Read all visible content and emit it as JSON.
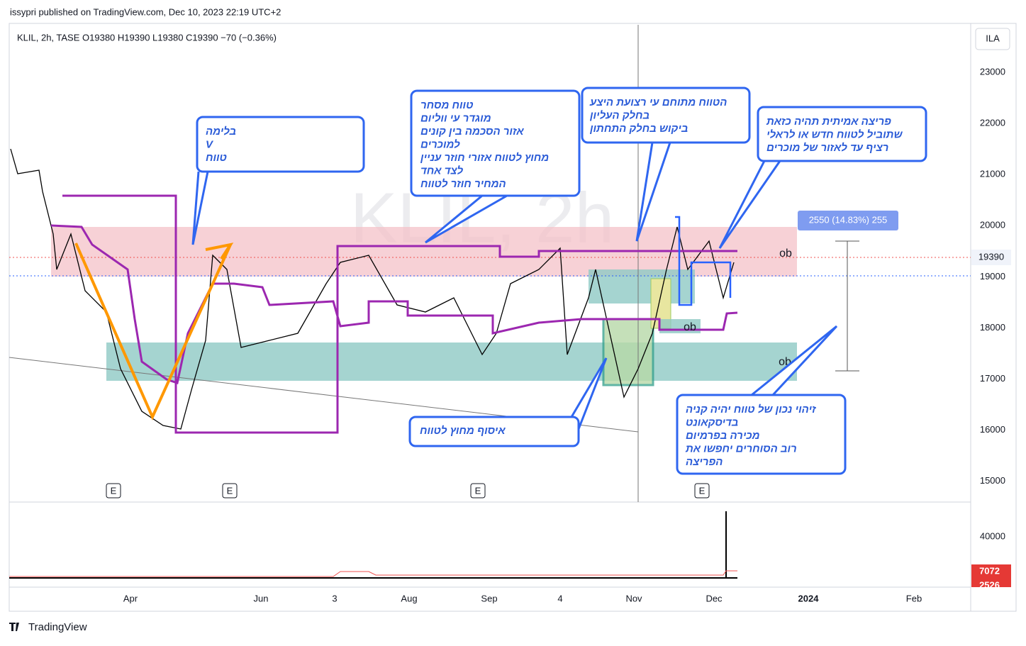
{
  "header": {
    "published": "issypri published on TradingView.com, Dec 10, 2023 22:19 UTC+2"
  },
  "chart": {
    "legend": "KLIL, 2h, TASE  O19380  H19390  L19380  C19390  −70 (−0.36%)",
    "currency": "ILA",
    "watermark": "KLIL, 2h",
    "price_axis": [
      "23000",
      "22000",
      "21000",
      "20000",
      "19000",
      "18000",
      "17000",
      "16000",
      "15000"
    ],
    "last_price": "19390",
    "measure_label": "2550 (14.83%) 255",
    "zone_labels": [
      "ob",
      "ob",
      "ob"
    ],
    "earnings_markers": [
      "E",
      "E",
      "E",
      "E"
    ],
    "volume_axis": [
      "40000"
    ],
    "volume_labels": [
      "7072",
      "2526"
    ],
    "time_axis": [
      "Apr",
      "Jun",
      "3",
      "Aug",
      "Sep",
      "4",
      "Nov",
      "Dec",
      "2024",
      "Feb"
    ]
  },
  "annotations": [
    {
      "lines": [
        "בלימה",
        "V",
        "טווח"
      ]
    },
    {
      "lines": [
        "טווח מסחר",
        "מוגדר עי ווליום",
        "אזור הסכמה בין קונים",
        "למוכרים",
        "מחוץ לטווח אזורי חוזר עניין",
        "לצד אחד",
        "המחיר חוזר לטווח"
      ]
    },
    {
      "lines": [
        "הטווח מתוחם עי רצועת היצע",
        "בחלק העליון",
        "ביקוש בחלק התחתון"
      ]
    },
    {
      "lines": [
        "פריצה אמיתית תהיה כזאת",
        "שתוביל לטווח חדש או לראלי",
        "רציף עד לאזור של מוכרים"
      ]
    },
    {
      "lines": [
        "איסוף מחוץ לטווח"
      ]
    },
    {
      "lines": [
        "זיהוי נכון של טווח יהיה קניה",
        "בדיסקאונט",
        "מכירה בפרמיום",
        "רוב הסוחרים יחפשו את",
        "הפריצה"
      ]
    }
  ],
  "footer": {
    "brand": "TradingView"
  }
}
